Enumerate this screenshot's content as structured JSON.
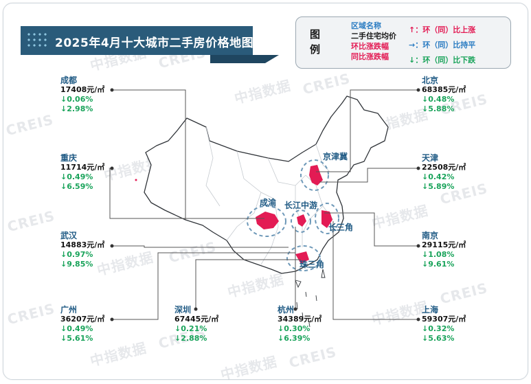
{
  "title": "2025年4月十大城市二手房价格地图",
  "legend": {
    "title": "图例",
    "lines": [
      "区域名称",
      "二手住宅均价",
      "环比涨跌幅",
      "同比涨跌幅"
    ],
    "marks": [
      "↑：环（同）比上涨",
      "→：环（同）比持平",
      "↓：环（同）比下跌"
    ]
  },
  "cities": {
    "chengdu": {
      "name": "成都",
      "price": "17408元/㎡",
      "mom": "↓0.06%",
      "yoy": "↓2.98%"
    },
    "chongqing": {
      "name": "重庆",
      "price": "11714元/㎡",
      "mom": "↓0.49%",
      "yoy": "↓6.59%"
    },
    "wuhan": {
      "name": "武汉",
      "price": "14883元/㎡",
      "mom": "↓0.97%",
      "yoy": "↓9.85%"
    },
    "guangzhou": {
      "name": "广州",
      "price": "36207元/㎡",
      "mom": "↓0.49%",
      "yoy": "↓5.61%"
    },
    "shenzhen": {
      "name": "深圳",
      "price": "67445元/㎡",
      "mom": "↓0.21%",
      "yoy": "↓2.88%"
    },
    "hangzhou": {
      "name": "杭州",
      "price": "34389元/㎡",
      "mom": "↓0.30%",
      "yoy": "↓6.39%"
    },
    "beijing": {
      "name": "北京",
      "price": "68385元/㎡",
      "mom": "↓0.48%",
      "yoy": "↓5.88%"
    },
    "tianjin": {
      "name": "天津",
      "price": "22508元/㎡",
      "mom": "↓0.42%",
      "yoy": "↓5.89%"
    },
    "nanjing": {
      "name": "南京",
      "price": "29115元/㎡",
      "mom": "↓1.08%",
      "yoy": "↓9.61%"
    },
    "shanghai": {
      "name": "上海",
      "price": "59307元/㎡",
      "mom": "↓0.32%",
      "yoy": "↓5.63%"
    }
  },
  "clusters": {
    "jingjinji": "京津冀",
    "chengyu": "成渝",
    "changjiang": "长江中游",
    "changsanjiao": "长三角",
    "zhusanjiao": "珠三角"
  },
  "watermarks": [
    "中指数据",
    "CREIS"
  ],
  "colors": {
    "title_bg": "#2a5b7a",
    "highlight": "#e31b54",
    "down": "#19a35a",
    "name": "#1f5a84"
  }
}
